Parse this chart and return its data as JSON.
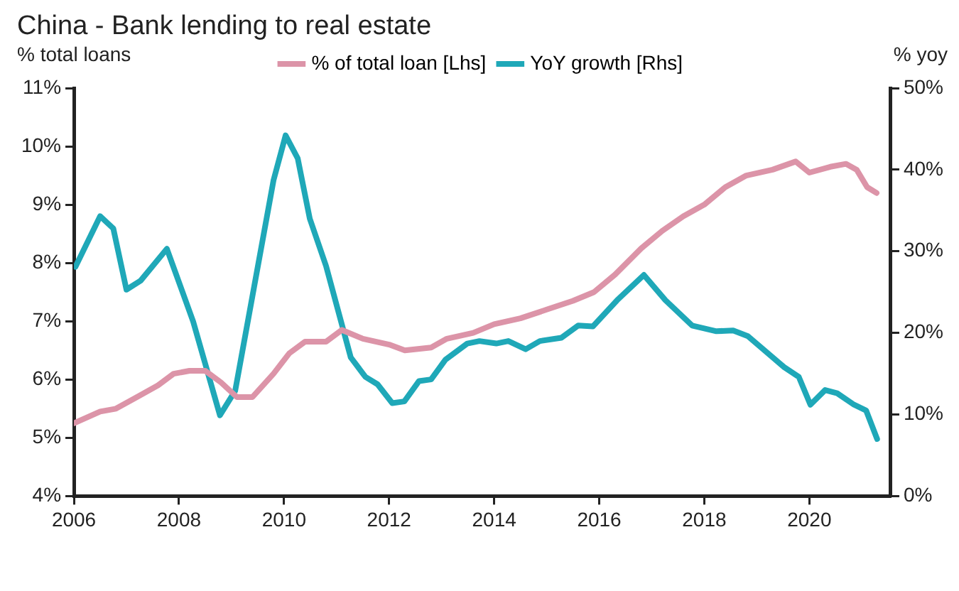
{
  "chart_data": {
    "type": "line",
    "title": "China - Bank lending to real estate",
    "ylabel": "% total loans",
    "y2label": "% yoy",
    "legend": "top",
    "grid": false,
    "marker": "none",
    "line_style": "solid",
    "xlim": [
      2006,
      2021.55
    ],
    "xticks": [
      2006,
      2008,
      2010,
      2012,
      2014,
      2016,
      2018,
      2020
    ],
    "ylim": [
      4,
      11
    ],
    "yticks": [
      {
        "value": 4,
        "label": "4%"
      },
      {
        "value": 5,
        "label": "5%"
      },
      {
        "value": 6,
        "label": "6%"
      },
      {
        "value": 7,
        "label": "7%"
      },
      {
        "value": 8,
        "label": "8%"
      },
      {
        "value": 9,
        "label": "9%"
      },
      {
        "value": 10,
        "label": "10%"
      },
      {
        "value": 11,
        "label": "11%"
      }
    ],
    "y2lim": [
      0,
      50
    ],
    "y2ticks": [
      {
        "value": 0,
        "label": "0%"
      },
      {
        "value": 10,
        "label": "10%"
      },
      {
        "value": 20,
        "label": "20%"
      },
      {
        "value": 30,
        "label": "30%"
      },
      {
        "value": 40,
        "label": "40%"
      },
      {
        "value": 50,
        "label": "50%"
      }
    ],
    "series": [
      {
        "name": "% of total loan [Lhs]",
        "color": "#dc94a8",
        "x": [
          2006.0,
          2006.5,
          2006.8,
          2007.2,
          2007.6,
          2007.9,
          2008.2,
          2008.5,
          2008.8,
          2009.1,
          2009.4,
          2009.8,
          2010.1,
          2010.4,
          2010.8,
          2011.1,
          2011.5,
          2012.0,
          2012.3,
          2012.8,
          2013.1,
          2013.6,
          2014.0,
          2014.5,
          2015.0,
          2015.5,
          2015.9,
          2016.3,
          2016.8,
          2017.2,
          2017.6,
          2018.0,
          2018.4,
          2018.8,
          2019.3,
          2019.74,
          2020.0,
          2020.4,
          2020.7,
          2020.9,
          2021.1,
          2021.28
        ],
        "values": [
          5.25,
          5.45,
          5.5,
          5.7,
          5.9,
          6.1,
          6.15,
          6.15,
          5.95,
          5.7,
          5.7,
          6.1,
          6.45,
          6.65,
          6.65,
          6.85,
          6.7,
          6.6,
          6.5,
          6.55,
          6.7,
          6.8,
          6.95,
          7.05,
          7.2,
          7.35,
          7.5,
          7.8,
          8.25,
          8.55,
          8.8,
          9.0,
          9.3,
          9.5,
          9.6,
          9.74,
          9.55,
          9.65,
          9.7,
          9.6,
          9.3,
          9.2
        ]
      },
      {
        "name": "YoY growth [Rhs]",
        "color": "#1fa8b8",
        "axis": "y2",
        "x": [
          2006.03,
          2006.5,
          2006.75,
          2007.0,
          2007.27,
          2007.77,
          2008.27,
          2008.78,
          2009.07,
          2009.8,
          2010.03,
          2010.26,
          2010.49,
          2010.8,
          2011.27,
          2011.55,
          2011.78,
          2012.06,
          2012.29,
          2012.57,
          2012.8,
          2013.07,
          2013.49,
          2013.72,
          2014.04,
          2014.27,
          2014.6,
          2014.87,
          2015.28,
          2015.6,
          2015.88,
          2016.34,
          2016.85,
          2017.26,
          2017.77,
          2018.23,
          2018.55,
          2018.83,
          2019.52,
          2019.8,
          2020.02,
          2020.3,
          2020.53,
          2020.85,
          2021.08,
          2021.29
        ],
        "values": [
          28.1,
          34.3,
          32.8,
          25.3,
          26.4,
          30.3,
          21.4,
          9.9,
          12.9,
          38.7,
          44.2,
          41.4,
          34.0,
          28.2,
          17.0,
          14.6,
          13.7,
          11.4,
          11.6,
          14.1,
          14.3,
          16.7,
          18.7,
          19.0,
          18.7,
          19.0,
          18.0,
          19.0,
          19.4,
          20.9,
          20.8,
          24.0,
          27.1,
          24.0,
          20.9,
          20.2,
          20.3,
          19.6,
          15.8,
          14.6,
          11.2,
          13.0,
          12.6,
          11.2,
          10.5,
          7.0
        ]
      }
    ]
  }
}
